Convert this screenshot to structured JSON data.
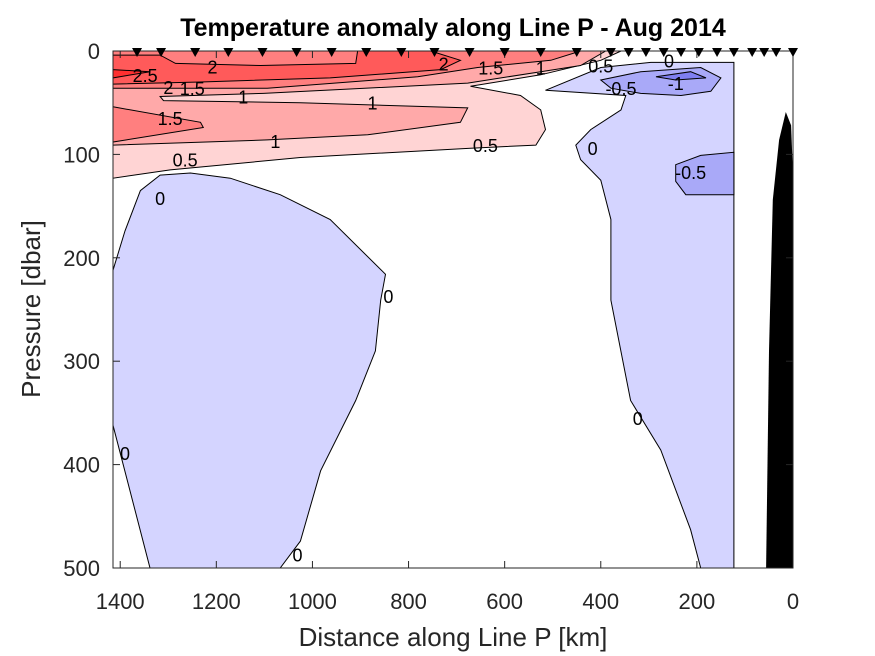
{
  "chart_data": {
    "type": "contour",
    "title": "Temperature anomaly along Line P - Aug 2014",
    "xlabel": "Distance along Line P [km]",
    "ylabel": "Pressure [dbar]",
    "xlim": [
      1415,
      0
    ],
    "ylim": [
      0,
      500
    ],
    "x_reversed": true,
    "y_reversed": true,
    "xticks": [
      "1400",
      "1200",
      "1000",
      "800",
      "600",
      "400",
      "200",
      "0"
    ],
    "xtick_values": [
      1400,
      1200,
      1000,
      800,
      600,
      400,
      200,
      0
    ],
    "yticks": [
      "0",
      "100",
      "200",
      "300",
      "400",
      "500"
    ],
    "ytick_values": [
      0,
      100,
      200,
      300,
      400,
      500
    ],
    "colors": {
      "gt_0_5": "#ffd4d4",
      "gt_1": "#ffa9a9",
      "gt_1_5": "#ff7f7f",
      "gt_2": "#ff5a5a",
      "gt_2_5": "#ff3030",
      "lt_0": "#d4d4ff",
      "lt_m0_5": "#a9a9f8",
      "lt_m1": "#7f7ff2",
      "bathymetry": "#000000"
    },
    "regions": [
      {
        "level": "gt_0_5",
        "points": [
          [
            1415,
            0
          ],
          [
            358,
            0
          ],
          [
            400,
            9
          ],
          [
            525,
            23
          ],
          [
            671,
            34
          ],
          [
            567,
            43
          ],
          [
            525,
            57
          ],
          [
            515,
            76
          ],
          [
            535,
            91
          ],
          [
            671,
            94
          ],
          [
            1025,
            103
          ],
          [
            1296,
            115
          ],
          [
            1415,
            123
          ]
        ]
      },
      {
        "level": "gt_1",
        "points": [
          [
            1415,
            0
          ],
          [
            390,
            0
          ],
          [
            442,
            14
          ],
          [
            525,
            20
          ],
          [
            677,
            31
          ],
          [
            1102,
            41
          ],
          [
            1317,
            44
          ],
          [
            1310,
            48
          ],
          [
            1025,
            50
          ],
          [
            677,
            55
          ],
          [
            692,
            69
          ],
          [
            885,
            81
          ],
          [
            1094,
            86
          ],
          [
            1415,
            91
          ]
        ]
      },
      {
        "level": "gt_1_5",
        "points": [
          [
            1415,
            0
          ],
          [
            442,
            0
          ],
          [
            504,
            9
          ],
          [
            656,
            16
          ],
          [
            781,
            25
          ],
          [
            1094,
            36
          ],
          [
            1415,
            36
          ]
        ]
      },
      {
        "level": "gt_1_5",
        "points": [
          [
            1415,
            54
          ],
          [
            1233,
            69
          ],
          [
            1227,
            74
          ],
          [
            1415,
            88
          ]
        ]
      },
      {
        "level": "gt_2",
        "points": [
          [
            1415,
            4
          ],
          [
            1317,
            4
          ],
          [
            1285,
            12
          ],
          [
            1108,
            14
          ],
          [
            910,
            12
          ],
          [
            906,
            0
          ],
          [
            754,
            0
          ],
          [
            692,
            9
          ],
          [
            733,
            18
          ],
          [
            963,
            26
          ],
          [
            1233,
            30
          ],
          [
            1415,
            32
          ]
        ]
      },
      {
        "level": "gt_2_5",
        "points": [
          [
            1415,
            18
          ],
          [
            1338,
            20
          ],
          [
            1415,
            26
          ]
        ]
      },
      {
        "level": "lt_0",
        "points": [
          [
            1415,
            212
          ],
          [
            1390,
            174
          ],
          [
            1358,
            135
          ],
          [
            1317,
            120
          ],
          [
            1254,
            118
          ],
          [
            1171,
            123
          ],
          [
            1067,
            139
          ],
          [
            963,
            163
          ],
          [
            848,
            216
          ],
          [
            858,
            241
          ],
          [
            869,
            290
          ],
          [
            910,
            338
          ],
          [
            983,
            406
          ],
          [
            1025,
            474
          ],
          [
            1067,
            500
          ],
          [
            1338,
            500
          ],
          [
            1415,
            362
          ]
        ]
      },
      {
        "level": "lt_0",
        "points": [
          [
            515,
            38
          ],
          [
            400,
            16
          ],
          [
            296,
            11
          ],
          [
            123,
            11
          ],
          [
            123,
            500
          ],
          [
            192,
            500
          ],
          [
            213,
            463
          ],
          [
            275,
            386
          ],
          [
            338,
            338
          ],
          [
            379,
            241
          ],
          [
            379,
            163
          ],
          [
            400,
            125
          ],
          [
            442,
            105
          ],
          [
            452,
            91
          ],
          [
            421,
            76
          ],
          [
            358,
            57
          ],
          [
            348,
            43
          ]
        ]
      },
      {
        "level": "lt_m0_5",
        "points": [
          [
            400,
            28
          ],
          [
            317,
            20
          ],
          [
            192,
            16
          ],
          [
            150,
            26
          ],
          [
            171,
            39
          ],
          [
            233,
            43
          ],
          [
            317,
            41
          ],
          [
            379,
            36
          ]
        ]
      },
      {
        "level": "lt_m1",
        "points": [
          [
            285,
            25
          ],
          [
            213,
            20
          ],
          [
            181,
            26
          ],
          [
            244,
            28
          ]
        ]
      },
      {
        "level": "lt_m0_5",
        "points": [
          [
            244,
            110
          ],
          [
            192,
            101
          ],
          [
            123,
            98
          ],
          [
            123,
            139
          ],
          [
            223,
            139
          ],
          [
            244,
            126
          ]
        ]
      },
      {
        "level": "bathymetry",
        "points": [
          [
            56,
            500
          ],
          [
            50,
            290
          ],
          [
            42,
            144
          ],
          [
            29,
            86
          ],
          [
            15,
            59
          ],
          [
            4,
            72
          ],
          [
            0,
            120
          ],
          [
            0,
            500
          ]
        ]
      }
    ],
    "contour_labels": [
      {
        "text": "2.5",
        "d": 1348,
        "p": 23
      },
      {
        "text": "2",
        "d": 1358,
        "p": 35
      },
      {
        "text": "2",
        "d": 1208,
        "p": 15
      },
      {
        "text": "1.5",
        "d": 1250,
        "p": 36
      },
      {
        "text": "1",
        "d": 1144,
        "p": 44
      },
      {
        "text": "1",
        "d": 875,
        "p": 50
      },
      {
        "text": "1.5",
        "d": 1296,
        "p": 65
      },
      {
        "text": "1",
        "d": 1077,
        "p": 87
      },
      {
        "text": "0.5",
        "d": 1265,
        "p": 105
      },
      {
        "text": "2",
        "d": 727,
        "p": 12
      },
      {
        "text": "1.5",
        "d": 629,
        "p": 16
      },
      {
        "text": "1",
        "d": 525,
        "p": 16
      },
      {
        "text": "0.5",
        "d": 400,
        "p": 14
      },
      {
        "text": "0",
        "d": 258,
        "p": 9
      },
      {
        "text": "-1",
        "d": 244,
        "p": 31
      },
      {
        "text": "-0.5",
        "d": 358,
        "p": 36
      },
      {
        "text": "0.5",
        "d": 640,
        "p": 91
      },
      {
        "text": "0",
        "d": 417,
        "p": 94
      },
      {
        "text": "-0.5",
        "d": 213,
        "p": 117
      },
      {
        "text": "0",
        "d": 1317,
        "p": 142
      },
      {
        "text": "0",
        "d": 842,
        "p": 237
      },
      {
        "text": "0",
        "d": 323,
        "p": 355
      },
      {
        "text": "0",
        "d": 1390,
        "p": 389
      },
      {
        "text": "0",
        "d": 1031,
        "p": 487
      }
    ],
    "station_distances_km": [
      1365,
      1315,
      1244,
      1175,
      1104,
      1033,
      960,
      888,
      815,
      746,
      673,
      600,
      525,
      450,
      379,
      342,
      306,
      269,
      233,
      196,
      158,
      123,
      85,
      60,
      35,
      0
    ],
    "grid": false
  }
}
